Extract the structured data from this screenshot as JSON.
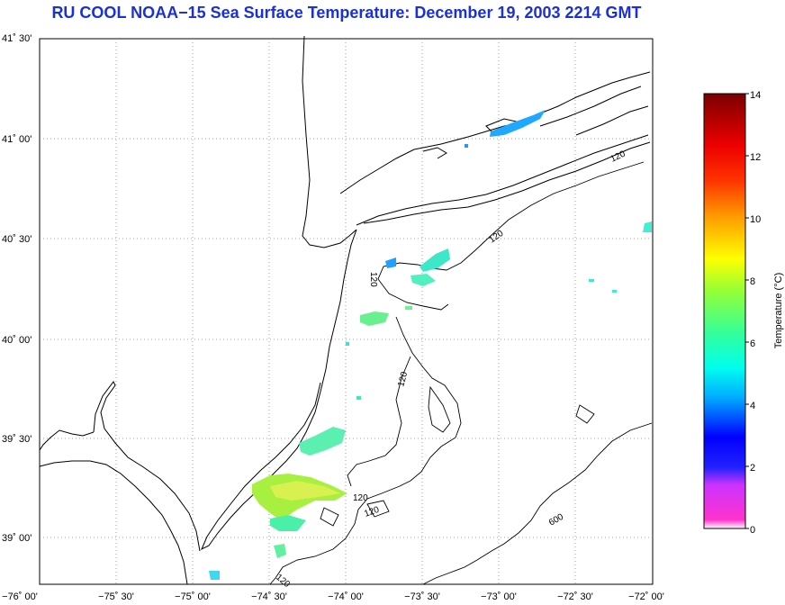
{
  "title": "RU COOL  NOAA−15  Sea Surface Temperature:  December 19, 2003 2214 GMT",
  "map": {
    "lon_labels": [
      "−76˚ 00'",
      "−75˚ 30'",
      "−75˚ 00'",
      "−74˚ 30'",
      "−74˚ 00'",
      "−73˚ 30'",
      "−73˚ 00'",
      "−72˚ 30'",
      "−72˚ 00'"
    ],
    "lat_labels": [
      "41˚ 30'",
      "41˚ 00'",
      "40˚ 30'",
      "40˚ 00'",
      "39˚ 30'",
      "39˚ 00'"
    ],
    "contour_labels": [
      "120",
      "120",
      "120",
      "120",
      "120",
      "120",
      "600"
    ],
    "land_color": "#ffffff",
    "coast_color": "#000000"
  },
  "colorbar": {
    "label": "Temperature (°C)",
    "ticks": [
      "14",
      "12",
      "10",
      "8",
      "6",
      "4",
      "2",
      "0"
    ],
    "colors": [
      "#8b0000",
      "#ff0000",
      "#ff8c00",
      "#ffff00",
      "#7fff00",
      "#00ffff",
      "#0000ff",
      "#ff33cc"
    ]
  }
}
